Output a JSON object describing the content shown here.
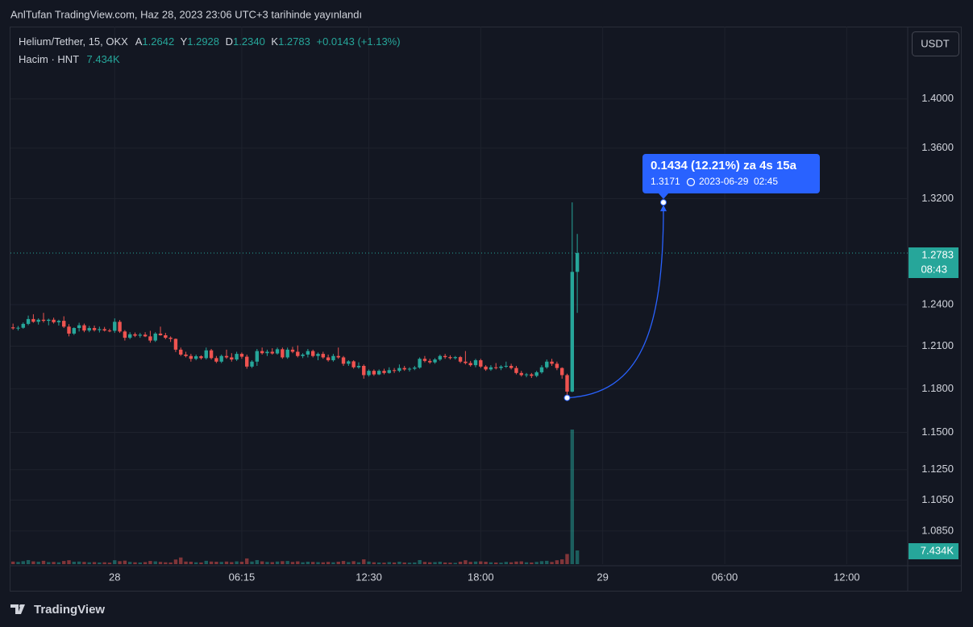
{
  "header": {
    "title": "AnlTufan TradingView.com, Haz 28, 2023 23:06 UTC+3 tarihinde yayınlandı",
    "brand": "TradingView"
  },
  "chart_data": {
    "type": "candlestick",
    "symbol": "Helium/Tether, 15, OKX",
    "ohlc_legend": [
      {
        "label": "A",
        "value": "1.2642"
      },
      {
        "label": "Y",
        "value": "1.2928"
      },
      {
        "label": "D",
        "value": "1.2340"
      },
      {
        "label": "K",
        "value": "1.2783"
      }
    ],
    "change": "+0.0143 (+1.13%)",
    "volume_title": "Hacim · HNT",
    "volume_legend": "7.434K",
    "currency": "USDT",
    "log_scale": true,
    "grid": true,
    "up_color": "#26a69a",
    "down_color": "#ef5350",
    "candles": [
      [
        1.2235,
        1.2262,
        1.2218,
        1.2228
      ],
      [
        1.2228,
        1.2245,
        1.2212,
        1.2232
      ],
      [
        1.2232,
        1.227,
        1.2225,
        1.226
      ],
      [
        1.226,
        1.232,
        1.225,
        1.2295
      ],
      [
        1.2295,
        1.233,
        1.2268,
        1.2275
      ],
      [
        1.2275,
        1.23,
        1.2255,
        1.229
      ],
      [
        1.229,
        1.234,
        1.227,
        1.2282
      ],
      [
        1.2282,
        1.2298,
        1.225,
        1.229
      ],
      [
        1.229,
        1.2305,
        1.2262,
        1.2272
      ],
      [
        1.2272,
        1.229,
        1.2248,
        1.2282
      ],
      [
        1.2282,
        1.2315,
        1.223,
        1.224
      ],
      [
        1.224,
        1.2258,
        1.217,
        1.219
      ],
      [
        1.219,
        1.2235,
        1.218,
        1.223
      ],
      [
        1.223,
        1.2268,
        1.2205,
        1.225
      ],
      [
        1.225,
        1.2262,
        1.22,
        1.2212
      ],
      [
        1.2212,
        1.2245,
        1.22,
        1.223
      ],
      [
        1.223,
        1.2248,
        1.2205,
        1.2215
      ],
      [
        1.2215,
        1.224,
        1.2198,
        1.2222
      ],
      [
        1.2222,
        1.2238,
        1.2205,
        1.2212
      ],
      [
        1.2212,
        1.2225,
        1.22,
        1.221
      ],
      [
        1.221,
        1.23,
        1.2195,
        1.2275
      ],
      [
        1.2275,
        1.2288,
        1.2195,
        1.2205
      ],
      [
        1.2205,
        1.2215,
        1.214,
        1.216
      ],
      [
        1.216,
        1.22,
        1.215,
        1.2185
      ],
      [
        1.2185,
        1.2198,
        1.2165,
        1.2175
      ],
      [
        1.2175,
        1.2195,
        1.216,
        1.2182
      ],
      [
        1.2182,
        1.22,
        1.2165,
        1.217
      ],
      [
        1.217,
        1.221,
        1.2125,
        1.214
      ],
      [
        1.214,
        1.22,
        1.213,
        1.219
      ],
      [
        1.219,
        1.224,
        1.2175,
        1.2178
      ],
      [
        1.2178,
        1.2195,
        1.215,
        1.216
      ],
      [
        1.216,
        1.217,
        1.213,
        1.2152
      ],
      [
        1.2152,
        1.2155,
        1.2058,
        1.2075
      ],
      [
        1.2075,
        1.209,
        1.203,
        1.204
      ],
      [
        1.204,
        1.206,
        1.202,
        1.203
      ],
      [
        1.203,
        1.2045,
        1.199,
        1.201
      ],
      [
        1.201,
        1.204,
        1.2,
        1.2028
      ],
      [
        1.2028,
        1.2035,
        1.2005,
        1.2015
      ],
      [
        1.2015,
        1.209,
        1.2005,
        1.207
      ],
      [
        1.207,
        1.208,
        1.2005,
        1.2015
      ],
      [
        1.2015,
        1.203,
        1.198,
        1.199
      ],
      [
        1.199,
        1.204,
        1.198,
        1.203
      ],
      [
        1.203,
        1.2075,
        1.201,
        1.202
      ],
      [
        1.202,
        1.205,
        1.199,
        1.2005
      ],
      [
        1.2005,
        1.206,
        1.1995,
        1.2045
      ],
      [
        1.2045,
        1.2055,
        1.201,
        1.2025
      ],
      [
        1.2025,
        1.204,
        1.194,
        1.1955
      ],
      [
        1.1955,
        1.2,
        1.1945,
        1.199
      ],
      [
        1.199,
        1.208,
        1.196,
        1.2065
      ],
      [
        1.2065,
        1.209,
        1.204,
        1.205
      ],
      [
        1.205,
        1.2075,
        1.203,
        1.206
      ],
      [
        1.206,
        1.2085,
        1.204,
        1.2048
      ],
      [
        1.2048,
        1.209,
        1.204,
        1.2078
      ],
      [
        1.2078,
        1.209,
        1.201,
        1.202
      ],
      [
        1.202,
        1.209,
        1.201,
        1.2075
      ],
      [
        1.2075,
        1.2095,
        1.205,
        1.206
      ],
      [
        1.206,
        1.2105,
        1.202,
        1.203
      ],
      [
        1.203,
        1.205,
        1.2015,
        1.204
      ],
      [
        1.204,
        1.208,
        1.202,
        1.2065
      ],
      [
        1.2065,
        1.2075,
        1.202,
        1.203
      ],
      [
        1.203,
        1.2055,
        1.2,
        1.2045
      ],
      [
        1.2045,
        1.206,
        1.201,
        1.202
      ],
      [
        1.202,
        1.204,
        1.199,
        1.2
      ],
      [
        1.2,
        1.2045,
        1.199,
        1.203
      ],
      [
        1.203,
        1.209,
        1.201,
        1.202
      ],
      [
        1.202,
        1.203,
        1.196,
        1.1975
      ],
      [
        1.1975,
        1.2,
        1.196,
        1.1992
      ],
      [
        1.1992,
        1.2,
        1.194,
        1.195
      ],
      [
        1.195,
        1.1985,
        1.194,
        1.196
      ],
      [
        1.196,
        1.197,
        1.187,
        1.1895
      ],
      [
        1.1895,
        1.1935,
        1.1885,
        1.1925
      ],
      [
        1.1925,
        1.1935,
        1.189,
        1.19
      ],
      [
        1.19,
        1.1935,
        1.1895,
        1.1925
      ],
      [
        1.1925,
        1.194,
        1.19,
        1.191
      ],
      [
        1.191,
        1.195,
        1.1905,
        1.193
      ],
      [
        1.193,
        1.1945,
        1.191,
        1.1925
      ],
      [
        1.1925,
        1.197,
        1.1915,
        1.1945
      ],
      [
        1.1945,
        1.196,
        1.1925,
        1.1935
      ],
      [
        1.1935,
        1.195,
        1.192,
        1.194
      ],
      [
        1.194,
        1.196,
        1.193,
        1.1948
      ],
      [
        1.1948,
        1.202,
        1.194,
        1.201
      ],
      [
        1.201,
        1.203,
        1.1985,
        1.1995
      ],
      [
        1.1995,
        1.201,
        1.1975,
        1.1985
      ],
      [
        1.1985,
        1.2015,
        1.1975,
        1.2005
      ],
      [
        1.2005,
        1.204,
        1.1995,
        1.203
      ],
      [
        1.203,
        1.2045,
        1.201,
        1.2022
      ],
      [
        1.2022,
        1.2035,
        1.2005,
        1.2015
      ],
      [
        1.2015,
        1.203,
        1.2005,
        1.2022
      ],
      [
        1.2022,
        1.203,
        1.198,
        1.199
      ],
      [
        1.199,
        1.2065,
        1.197,
        1.198
      ],
      [
        1.198,
        1.1995,
        1.1955,
        1.1965
      ],
      [
        1.1965,
        1.201,
        1.195,
        1.2
      ],
      [
        1.2,
        1.201,
        1.1945,
        1.1955
      ],
      [
        1.1955,
        1.1965,
        1.1925,
        1.1935
      ],
      [
        1.1935,
        1.1965,
        1.1925,
        1.195
      ],
      [
        1.195,
        1.198,
        1.1935,
        1.1945
      ],
      [
        1.1945,
        1.1965,
        1.193,
        1.1955
      ],
      [
        1.1955,
        1.199,
        1.1945,
        1.196
      ],
      [
        1.196,
        1.1975,
        1.1935,
        1.1945
      ],
      [
        1.1945,
        1.196,
        1.19,
        1.191
      ],
      [
        1.191,
        1.1925,
        1.1885,
        1.1895
      ],
      [
        1.1895,
        1.191,
        1.188,
        1.19
      ],
      [
        1.19,
        1.191,
        1.1875,
        1.189
      ],
      [
        1.189,
        1.1925,
        1.188,
        1.1915
      ],
      [
        1.1915,
        1.1965,
        1.1905,
        1.195
      ],
      [
        1.195,
        1.2005,
        1.194,
        1.199
      ],
      [
        1.199,
        1.201,
        1.196,
        1.1975
      ],
      [
        1.1975,
        1.199,
        1.193,
        1.1945
      ],
      [
        1.1945,
        1.195,
        1.187,
        1.1895
      ],
      [
        1.1895,
        1.1905,
        1.1737,
        1.178
      ],
      [
        1.178,
        1.3171,
        1.1775,
        1.2642
      ],
      [
        1.2642,
        1.2928,
        1.234,
        1.2783
      ]
    ],
    "volumes": [
      1400,
      1200,
      1600,
      2200,
      1500,
      1300,
      1800,
      1100,
      1200,
      1000,
      1700,
      2100,
      1300,
      1400,
      1200,
      1000,
      1100,
      900,
      1000,
      800,
      2100,
      1600,
      1900,
      1200,
      1000,
      900,
      1100,
      1700,
      1500,
      1200,
      1000,
      900,
      2500,
      3600,
      1400,
      1300,
      1000,
      900,
      1800,
      1400,
      1300,
      1200,
      1400,
      1100,
      1500,
      1300,
      3100,
      1400,
      2200,
      1500,
      1200,
      1100,
      1400,
      1600,
      1700,
      1200,
      1500,
      1000,
      1300,
      1200,
      1100,
      1000,
      1200,
      1000,
      1300,
      1700,
      1100,
      1600,
      1000,
      2600,
      1400,
      1000,
      900,
      800,
      1100,
      900,
      1300,
      900,
      800,
      900,
      2200,
      1200,
      1000,
      1100,
      1300,
      900,
      800,
      700,
      1300,
      2100,
      1200,
      1400,
      1500,
      1300,
      1000,
      900,
      800,
      1200,
      1000,
      1400,
      1500,
      1000,
      900,
      1200,
      1600,
      1800,
      1200,
      2100,
      2600,
      5500,
      73000,
      7434
    ],
    "ylim": [
      1.064,
      1.461
    ],
    "yticks": [
      {
        "value": 1.4,
        "label": "1.4000"
      },
      {
        "value": 1.36,
        "label": "1.3600"
      },
      {
        "value": 1.32,
        "label": "1.3200"
      },
      {
        "value": 1.24,
        "label": "1.2400"
      },
      {
        "value": 1.21,
        "label": "1.2100"
      },
      {
        "value": 1.18,
        "label": "1.1800"
      },
      {
        "value": 1.15,
        "label": "1.1500"
      },
      {
        "value": 1.125,
        "label": "1.1250"
      },
      {
        "value": 1.105,
        "label": "1.1050"
      },
      {
        "value": 1.085,
        "label": "1.0850"
      }
    ],
    "xlim": [
      -0.5,
      176
    ],
    "xticks": [
      {
        "value": 20,
        "label": "28"
      },
      {
        "value": 45,
        "label": "06:15"
      },
      {
        "value": 70,
        "label": "12:30"
      },
      {
        "value": 92,
        "label": "18:00"
      },
      {
        "value": 116,
        "label": "29"
      },
      {
        "value": 140,
        "label": "06:00"
      },
      {
        "value": 164,
        "label": "12:00"
      }
    ],
    "last_price_label": "1.2783",
    "countdown": "08:43",
    "volume_label": "7.434K",
    "measure": {
      "text": "0.1434 (12.21%) za 4s 15a",
      "price": "1.3171",
      "date": "2023-06-29",
      "time": "02:45"
    }
  }
}
